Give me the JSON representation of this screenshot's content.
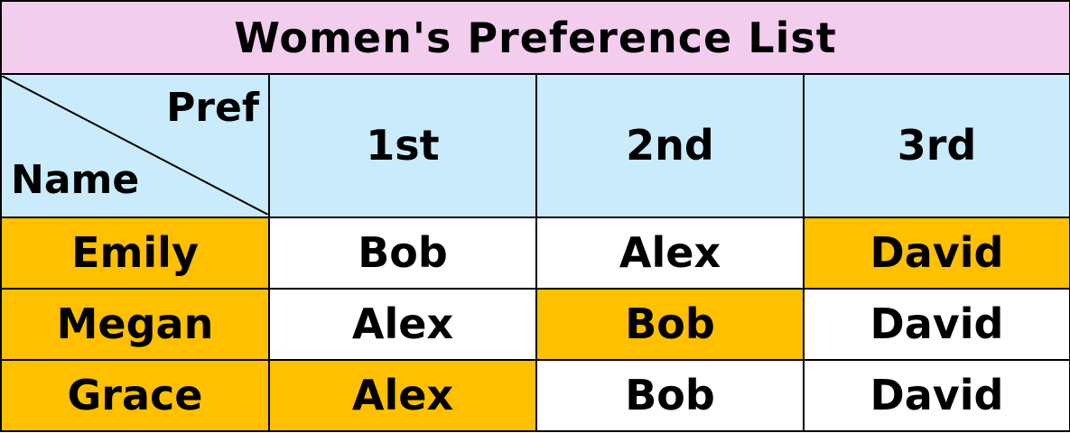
{
  "title": "Women's Preference List",
  "corner": {
    "top_right_label": "Pref",
    "bottom_left_label": "Name"
  },
  "columns": [
    "1st",
    "2nd",
    "3rd"
  ],
  "rows": [
    {
      "name": "Emily",
      "prefs": [
        "Bob",
        "Alex",
        "David"
      ],
      "highlight_index": 2
    },
    {
      "name": "Megan",
      "prefs": [
        "Alex",
        "Bob",
        "David"
      ],
      "highlight_index": 1
    },
    {
      "name": "Grace",
      "prefs": [
        "Alex",
        "Bob",
        "David"
      ],
      "highlight_index": 0
    }
  ],
  "colors": {
    "title_bg": "#f2cdee",
    "header_bg": "#c9ebfb",
    "highlight": "#ffc000",
    "cell_bg": "#ffffff",
    "border": "#000000"
  }
}
